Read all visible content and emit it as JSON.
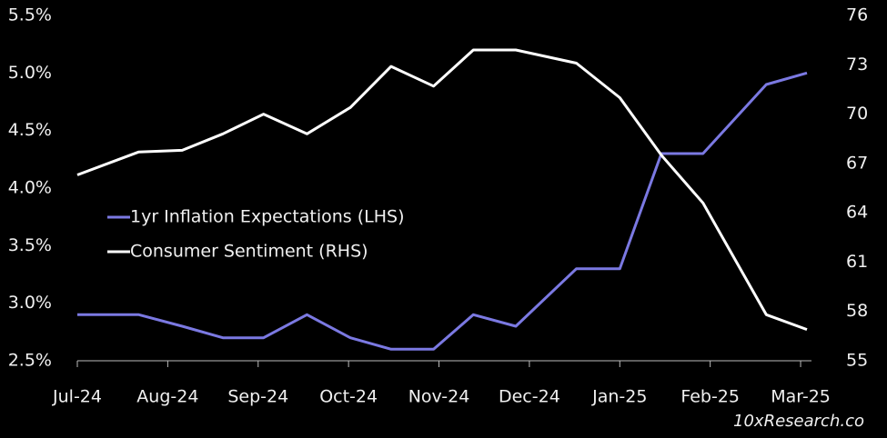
{
  "chart_data": {
    "type": "line",
    "xticks": [
      {
        "value": 0,
        "label": "Jul-24"
      },
      {
        "value": 1,
        "label": "Aug-24"
      },
      {
        "value": 2,
        "label": "Sep-24"
      },
      {
        "value": 3,
        "label": "Oct-24"
      },
      {
        "value": 4,
        "label": "Nov-24"
      },
      {
        "value": 5,
        "label": "Dec-24"
      },
      {
        "value": 6,
        "label": "Jan-25"
      },
      {
        "value": 7,
        "label": "Feb-25"
      },
      {
        "value": 8,
        "label": "Mar-25"
      }
    ],
    "xlim": [
      0,
      8.07
    ],
    "x": [
      0,
      0.68,
      1.16,
      1.61,
      2.06,
      2.54,
      3.02,
      3.47,
      3.94,
      4.38,
      4.85,
      5.52,
      6.0,
      6.46,
      6.92,
      7.62,
      8.07
    ],
    "ylim": [
      2.5,
      5.5
    ],
    "yticks": [
      {
        "value": 2.5,
        "label": "2.5%"
      },
      {
        "value": 3.0,
        "label": "3.0%"
      },
      {
        "value": 3.5,
        "label": "3.5%"
      },
      {
        "value": 4.0,
        "label": "4.0%"
      },
      {
        "value": 4.5,
        "label": "4.5%"
      },
      {
        "value": 5.0,
        "label": "5.0%"
      },
      {
        "value": 5.5,
        "label": "5.5%"
      }
    ],
    "y2lim": [
      55,
      76
    ],
    "y2ticks": [
      55,
      58,
      61,
      64,
      67,
      70,
      73,
      76
    ],
    "series": [
      {
        "name": "1yr Inflation Expectations (LHS)",
        "color": "#7b79e2",
        "values": [
          2.9,
          2.9,
          2.8,
          2.7,
          2.7,
          2.9,
          2.7,
          2.6,
          2.6,
          2.9,
          2.8,
          3.3,
          3.3,
          4.3,
          4.3,
          4.9,
          5.0
        ]
      },
      {
        "name": "Consumer Sentiment (RHS)",
        "color": "#ffffff",
        "axis": "y2",
        "values": [
          66.3,
          67.7,
          67.8,
          68.8,
          70.0,
          68.8,
          70.4,
          72.9,
          71.7,
          73.9,
          73.9,
          73.1,
          71.0,
          67.5,
          64.6,
          57.8,
          56.9
        ]
      }
    ],
    "watermark": "10xResearch.co"
  }
}
